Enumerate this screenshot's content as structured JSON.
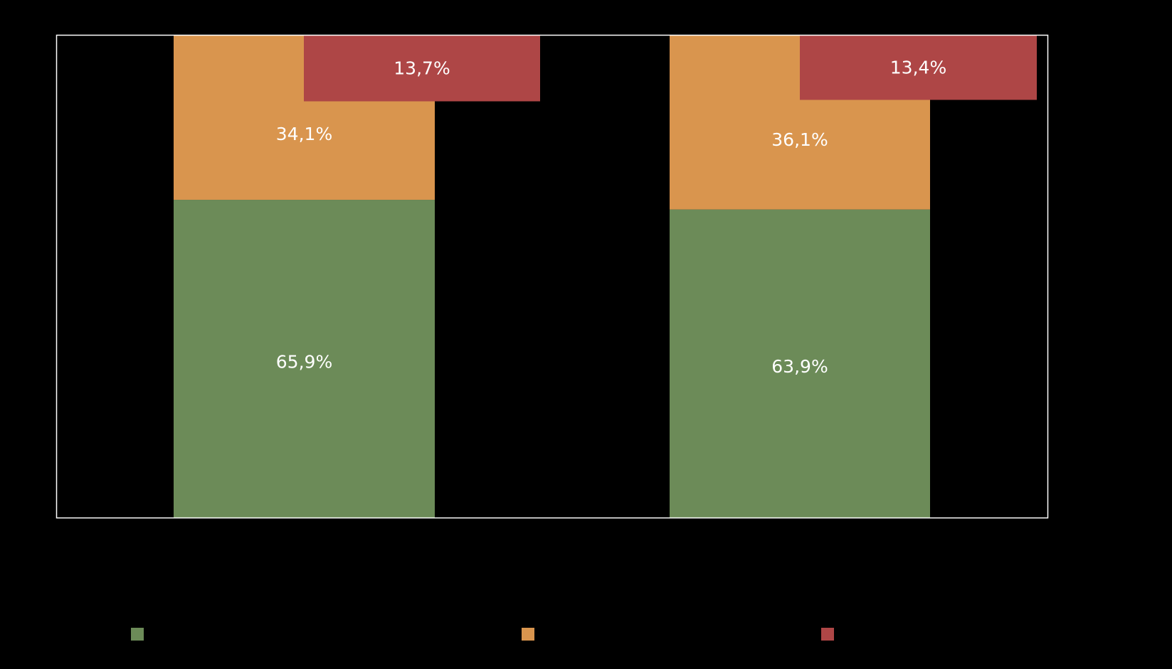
{
  "colors": {
    "background": "#000000",
    "frame": "#ffffff",
    "green": "#6c8b58",
    "orange": "#d9954e",
    "red": "#ae4646"
  },
  "chart_data": {
    "type": "bar",
    "stacked": true,
    "grouped": true,
    "title": "",
    "xlabel": "",
    "ylabel": "",
    "ylim": [
      0,
      100
    ],
    "grid": false,
    "legend": "bottom",
    "groups": [
      {
        "stack": [
          {
            "series": "green",
            "value": 65.9,
            "label": "65,9%"
          },
          {
            "series": "orange",
            "value": 34.1,
            "label": "34,1%"
          }
        ],
        "single": {
          "series": "red",
          "value": 13.7,
          "label": "13,7%"
        }
      },
      {
        "stack": [
          {
            "series": "green",
            "value": 63.9,
            "label": "63,9%"
          },
          {
            "series": "orange",
            "value": 36.1,
            "label": "36,1%"
          }
        ],
        "single": {
          "series": "red",
          "value": 13.4,
          "label": "13,4%"
        }
      }
    ],
    "legend_entries": [
      {
        "series": "green",
        "color": "#6c8b58"
      },
      {
        "series": "orange",
        "color": "#d9954e"
      },
      {
        "series": "red",
        "color": "#ae4646"
      }
    ]
  }
}
